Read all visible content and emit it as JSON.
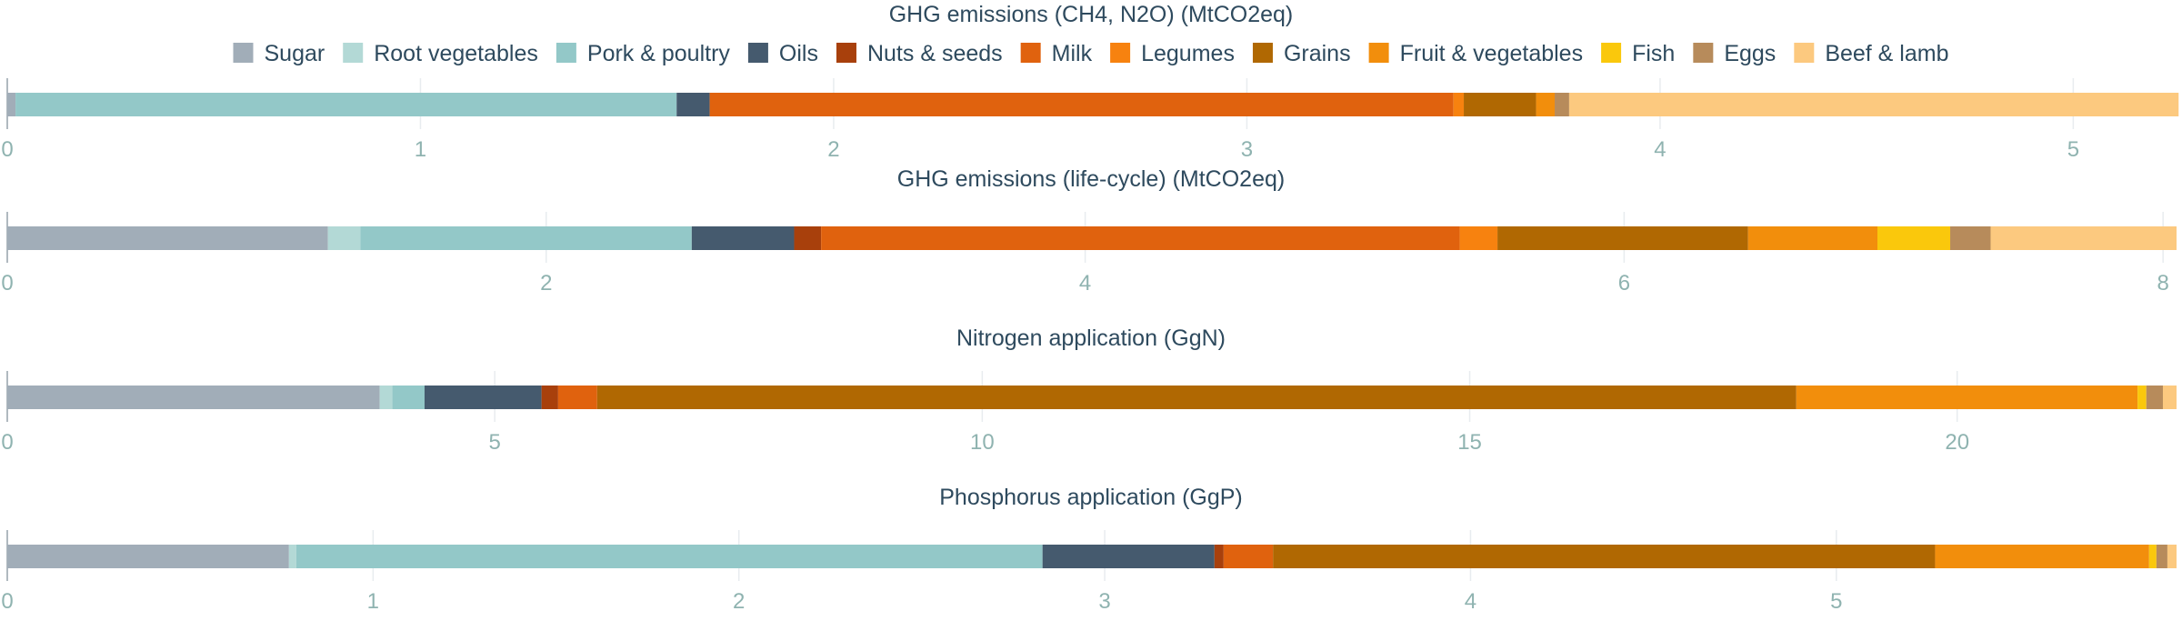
{
  "legend": [
    {
      "name": "Sugar",
      "color": "#a1adb8"
    },
    {
      "name": "Root vegetables",
      "color": "#b3d9d6"
    },
    {
      "name": "Pork & poultry",
      "color": "#93c8c8"
    },
    {
      "name": "Oils",
      "color": "#455a6e"
    },
    {
      "name": "Nuts & seeds",
      "color": "#a8400c"
    },
    {
      "name": "Milk",
      "color": "#e0620e"
    },
    {
      "name": "Legumes",
      "color": "#f7820f"
    },
    {
      "name": "Grains",
      "color": "#b06802"
    },
    {
      "name": "Fruit & vegetables",
      "color": "#f28e0c"
    },
    {
      "name": "Fish",
      "color": "#fac80c"
    },
    {
      "name": "Eggs",
      "color": "#b78b5b"
    },
    {
      "name": "Beef & lamb",
      "color": "#fcc97f"
    }
  ],
  "chart_data": [
    {
      "type": "bar",
      "orientation": "horizontal-stacked",
      "title": "GHG emissions (CH4, N2O) (MtCO2eq)",
      "xlim": [
        0,
        5.25
      ],
      "ticks": [
        0,
        1,
        2,
        3,
        4,
        5
      ],
      "series": [
        {
          "name": "Sugar",
          "value": 0.02
        },
        {
          "name": "Root vegetables",
          "value": 0.0
        },
        {
          "name": "Pork & poultry",
          "value": 1.6
        },
        {
          "name": "Oils",
          "value": 0.08
        },
        {
          "name": "Nuts & seeds",
          "value": 0.0
        },
        {
          "name": "Milk",
          "value": 1.8
        },
        {
          "name": "Legumes",
          "value": 0.025
        },
        {
          "name": "Grains",
          "value": 0.175
        },
        {
          "name": "Fruit & vegetables",
          "value": 0.045
        },
        {
          "name": "Fish",
          "value": 0.0
        },
        {
          "name": "Eggs",
          "value": 0.035
        },
        {
          "name": "Beef & lamb",
          "value": 1.475
        }
      ]
    },
    {
      "type": "bar",
      "orientation": "horizontal-stacked",
      "title": "GHG emissions (life-cycle) (MtCO2eq)",
      "xlim": [
        0,
        8.05
      ],
      "ticks": [
        0,
        2,
        4,
        6,
        8
      ],
      "series": [
        {
          "name": "Sugar",
          "value": 1.19
        },
        {
          "name": "Root vegetables",
          "value": 0.12
        },
        {
          "name": "Pork & poultry",
          "value": 1.23
        },
        {
          "name": "Oils",
          "value": 0.38
        },
        {
          "name": "Nuts & seeds",
          "value": 0.1
        },
        {
          "name": "Milk",
          "value": 2.37
        },
        {
          "name": "Legumes",
          "value": 0.14
        },
        {
          "name": "Grains",
          "value": 0.93
        },
        {
          "name": "Fruit & vegetables",
          "value": 0.48
        },
        {
          "name": "Fish",
          "value": 0.27
        },
        {
          "name": "Eggs",
          "value": 0.15
        },
        {
          "name": "Beef & lamb",
          "value": 0.69
        }
      ]
    },
    {
      "type": "bar",
      "orientation": "horizontal-stacked",
      "title": "Nitrogen application (GgN)",
      "xlim": [
        0,
        22.25
      ],
      "ticks": [
        0,
        5,
        10,
        15,
        20
      ],
      "series": [
        {
          "name": "Sugar",
          "value": 3.82
        },
        {
          "name": "Root vegetables",
          "value": 0.13
        },
        {
          "name": "Pork & poultry",
          "value": 0.33
        },
        {
          "name": "Oils",
          "value": 1.2
        },
        {
          "name": "Nuts & seeds",
          "value": 0.17
        },
        {
          "name": "Milk",
          "value": 0.4
        },
        {
          "name": "Legumes",
          "value": 0.0
        },
        {
          "name": "Grains",
          "value": 12.3
        },
        {
          "name": "Fruit & vegetables",
          "value": 3.5
        },
        {
          "name": "Fish",
          "value": 0.09
        },
        {
          "name": "Eggs",
          "value": 0.17
        },
        {
          "name": "Beef & lamb",
          "value": 0.14
        }
      ]
    },
    {
      "type": "bar",
      "orientation": "horizontal-stacked",
      "title": "Phosphorus application (GgP)",
      "xlim": [
        0,
        5.93
      ],
      "ticks": [
        0,
        1,
        2,
        3,
        4,
        5
      ],
      "series": [
        {
          "name": "Sugar",
          "value": 0.77
        },
        {
          "name": "Root vegetables",
          "value": 0.02
        },
        {
          "name": "Pork & poultry",
          "value": 2.04
        },
        {
          "name": "Oils",
          "value": 0.47
        },
        {
          "name": "Nuts & seeds",
          "value": 0.025
        },
        {
          "name": "Milk",
          "value": 0.135
        },
        {
          "name": "Legumes",
          "value": 0.0
        },
        {
          "name": "Grains",
          "value": 1.81
        },
        {
          "name": "Fruit & vegetables",
          "value": 0.585
        },
        {
          "name": "Fish",
          "value": 0.02
        },
        {
          "name": "Eggs",
          "value": 0.03
        },
        {
          "name": "Beef & lamb",
          "value": 0.025
        }
      ]
    }
  ]
}
